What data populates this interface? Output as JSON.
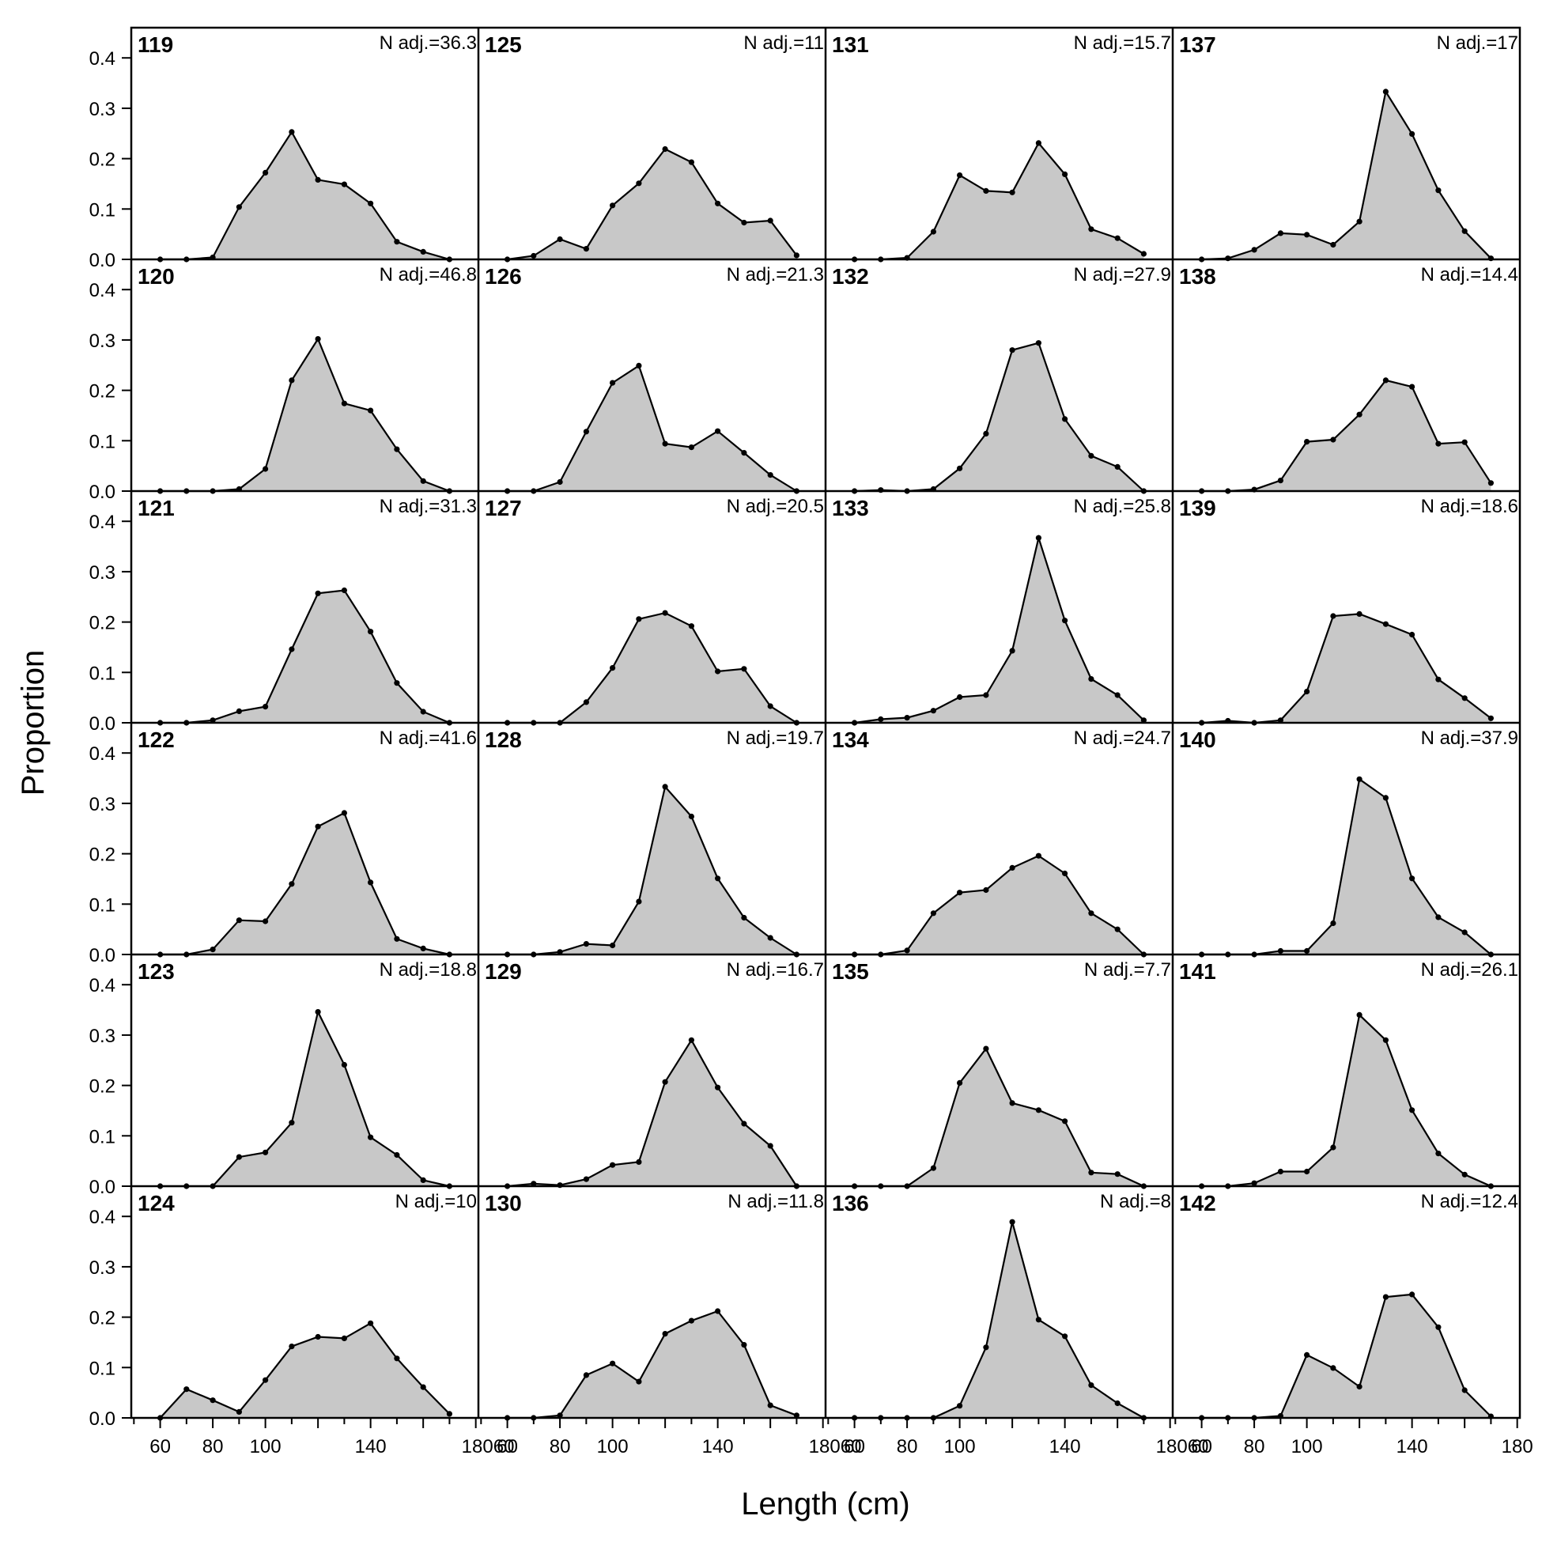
{
  "chart_data": {
    "type": "area",
    "xlabel": "Length (cm)",
    "ylabel": "Proportion",
    "xlim": [
      49,
      181
    ],
    "ylim": [
      0,
      0.46
    ],
    "x_ticks": [
      60,
      80,
      100,
      140,
      180
    ],
    "x_tick_labels": [
      "60",
      "80",
      "100",
      "140",
      "180"
    ],
    "x_tick_labels_col0": [
      "60",
      "80",
      "100",
      "140",
      "18060"
    ],
    "y_ticks": [
      0.0,
      0.1,
      0.2,
      0.3,
      0.4
    ],
    "y_tick_labels": [
      "0.0",
      "0.1",
      "0.2",
      "0.3",
      "0.4"
    ],
    "grid": false,
    "layout": {
      "rows": 6,
      "cols": 4
    },
    "x": [
      60,
      70,
      80,
      90,
      100,
      110,
      120,
      130,
      140,
      150,
      160,
      170
    ],
    "panels": [
      {
        "label": "119",
        "n_adj": "N adj.=36.3",
        "values": [
          0,
          0,
          0.004,
          0.104,
          0.172,
          0.253,
          0.158,
          0.149,
          0.111,
          0.035,
          0.015,
          0.0
        ]
      },
      {
        "label": "120",
        "n_adj": "N adj.=46.8",
        "values": [
          0,
          0,
          0,
          0.004,
          0.044,
          0.22,
          0.302,
          0.174,
          0.16,
          0.083,
          0.02,
          0.0
        ]
      },
      {
        "label": "121",
        "n_adj": "N adj.=31.3",
        "values": [
          0,
          0,
          0.005,
          0.023,
          0.032,
          0.146,
          0.257,
          0.263,
          0.181,
          0.079,
          0.022,
          0.0
        ]
      },
      {
        "label": "122",
        "n_adj": "N adj.=41.6",
        "values": [
          0,
          0,
          0.01,
          0.068,
          0.066,
          0.14,
          0.254,
          0.281,
          0.143,
          0.031,
          0.012,
          0.0
        ]
      },
      {
        "label": "123",
        "n_adj": "N adj.=18.8",
        "values": [
          0,
          0,
          0,
          0.058,
          0.067,
          0.126,
          0.346,
          0.241,
          0.097,
          0.062,
          0.012,
          0.0
        ]
      },
      {
        "label": "124",
        "n_adj": "N adj.=10",
        "values": [
          0,
          0.057,
          0.035,
          0.012,
          0.075,
          0.142,
          0.161,
          0.158,
          0.188,
          0.118,
          0.061,
          0.008
        ]
      },
      {
        "label": "125",
        "n_adj": "N adj.=11",
        "values": [
          0,
          0.007,
          0.04,
          0.021,
          0.107,
          0.151,
          0.219,
          0.193,
          0.111,
          0.073,
          0.077,
          0.008
        ]
      },
      {
        "label": "126",
        "n_adj": "N adj.=21.3",
        "values": [
          0,
          0,
          0.018,
          0.118,
          0.215,
          0.249,
          0.094,
          0.087,
          0.119,
          0.076,
          0.032,
          0.0
        ]
      },
      {
        "label": "127",
        "n_adj": "N adj.=20.5",
        "values": [
          0,
          0,
          0,
          0.041,
          0.109,
          0.206,
          0.218,
          0.192,
          0.102,
          0.107,
          0.033,
          0.0
        ]
      },
      {
        "label": "128",
        "n_adj": "N adj.=19.7",
        "values": [
          0,
          0,
          0.005,
          0.021,
          0.018,
          0.105,
          0.333,
          0.274,
          0.151,
          0.073,
          0.033,
          0.0
        ]
      },
      {
        "label": "129",
        "n_adj": "N adj.=16.7",
        "values": [
          0,
          0.005,
          0.002,
          0.014,
          0.042,
          0.048,
          0.207,
          0.29,
          0.196,
          0.124,
          0.08,
          0.0
        ]
      },
      {
        "label": "130",
        "n_adj": "N adj.=11.8",
        "values": [
          0,
          0,
          0.005,
          0.085,
          0.108,
          0.072,
          0.167,
          0.193,
          0.212,
          0.145,
          0.025,
          0.005
        ]
      },
      {
        "label": "131",
        "n_adj": "N adj.=15.7",
        "values": [
          0,
          0,
          0.003,
          0.055,
          0.167,
          0.136,
          0.133,
          0.231,
          0.169,
          0.06,
          0.042,
          0.011
        ]
      },
      {
        "label": "132",
        "n_adj": "N adj.=27.9",
        "values": [
          0,
          0.002,
          0.0,
          0.004,
          0.045,
          0.114,
          0.28,
          0.294,
          0.143,
          0.07,
          0.048,
          0.0
        ]
      },
      {
        "label": "133",
        "n_adj": "N adj.=25.8",
        "values": [
          0,
          0.007,
          0.01,
          0.024,
          0.051,
          0.055,
          0.143,
          0.367,
          0.203,
          0.087,
          0.055,
          0.005
        ]
      },
      {
        "label": "134",
        "n_adj": "N adj.=24.7",
        "values": [
          0,
          0,
          0.008,
          0.082,
          0.123,
          0.128,
          0.172,
          0.196,
          0.161,
          0.082,
          0.05,
          0.0
        ]
      },
      {
        "label": "135",
        "n_adj": "N adj.=7.7",
        "values": [
          0,
          0,
          0,
          0.036,
          0.205,
          0.273,
          0.165,
          0.151,
          0.129,
          0.027,
          0.024,
          0.0
        ]
      },
      {
        "label": "136",
        "n_adj": "N adj.=8",
        "values": [
          0,
          0,
          0,
          0,
          0.024,
          0.14,
          0.389,
          0.195,
          0.162,
          0.065,
          0.029,
          0.0
        ]
      },
      {
        "label": "137",
        "n_adj": "N adj.=17",
        "values": [
          0,
          0.002,
          0.019,
          0.052,
          0.049,
          0.029,
          0.075,
          0.333,
          0.249,
          0.137,
          0.056,
          0.002
        ]
      },
      {
        "label": "138",
        "n_adj": "N adj.=14.4",
        "values": [
          0,
          0,
          0.003,
          0.021,
          0.098,
          0.102,
          0.152,
          0.22,
          0.207,
          0.094,
          0.097,
          0.016
        ]
      },
      {
        "label": "139",
        "n_adj": "N adj.=18.6",
        "values": [
          0,
          0.004,
          0.0,
          0.005,
          0.062,
          0.212,
          0.216,
          0.196,
          0.175,
          0.086,
          0.049,
          0.009
        ]
      },
      {
        "label": "140",
        "n_adj": "N adj.=37.9",
        "values": [
          0,
          0,
          0,
          0.007,
          0.007,
          0.062,
          0.348,
          0.311,
          0.151,
          0.074,
          0.044,
          0.0
        ]
      },
      {
        "label": "141",
        "n_adj": "N adj.=26.1",
        "values": [
          0,
          0,
          0.006,
          0.029,
          0.029,
          0.077,
          0.34,
          0.29,
          0.151,
          0.065,
          0.023,
          0.0
        ]
      },
      {
        "label": "142",
        "n_adj": "N adj.=12.4",
        "values": [
          0,
          0,
          0,
          0.004,
          0.125,
          0.099,
          0.062,
          0.24,
          0.245,
          0.18,
          0.055,
          0.003
        ]
      }
    ]
  },
  "colors": {
    "fill": "#c8c8c8",
    "line": "#000000",
    "axis": "#000000",
    "background": "#ffffff"
  }
}
